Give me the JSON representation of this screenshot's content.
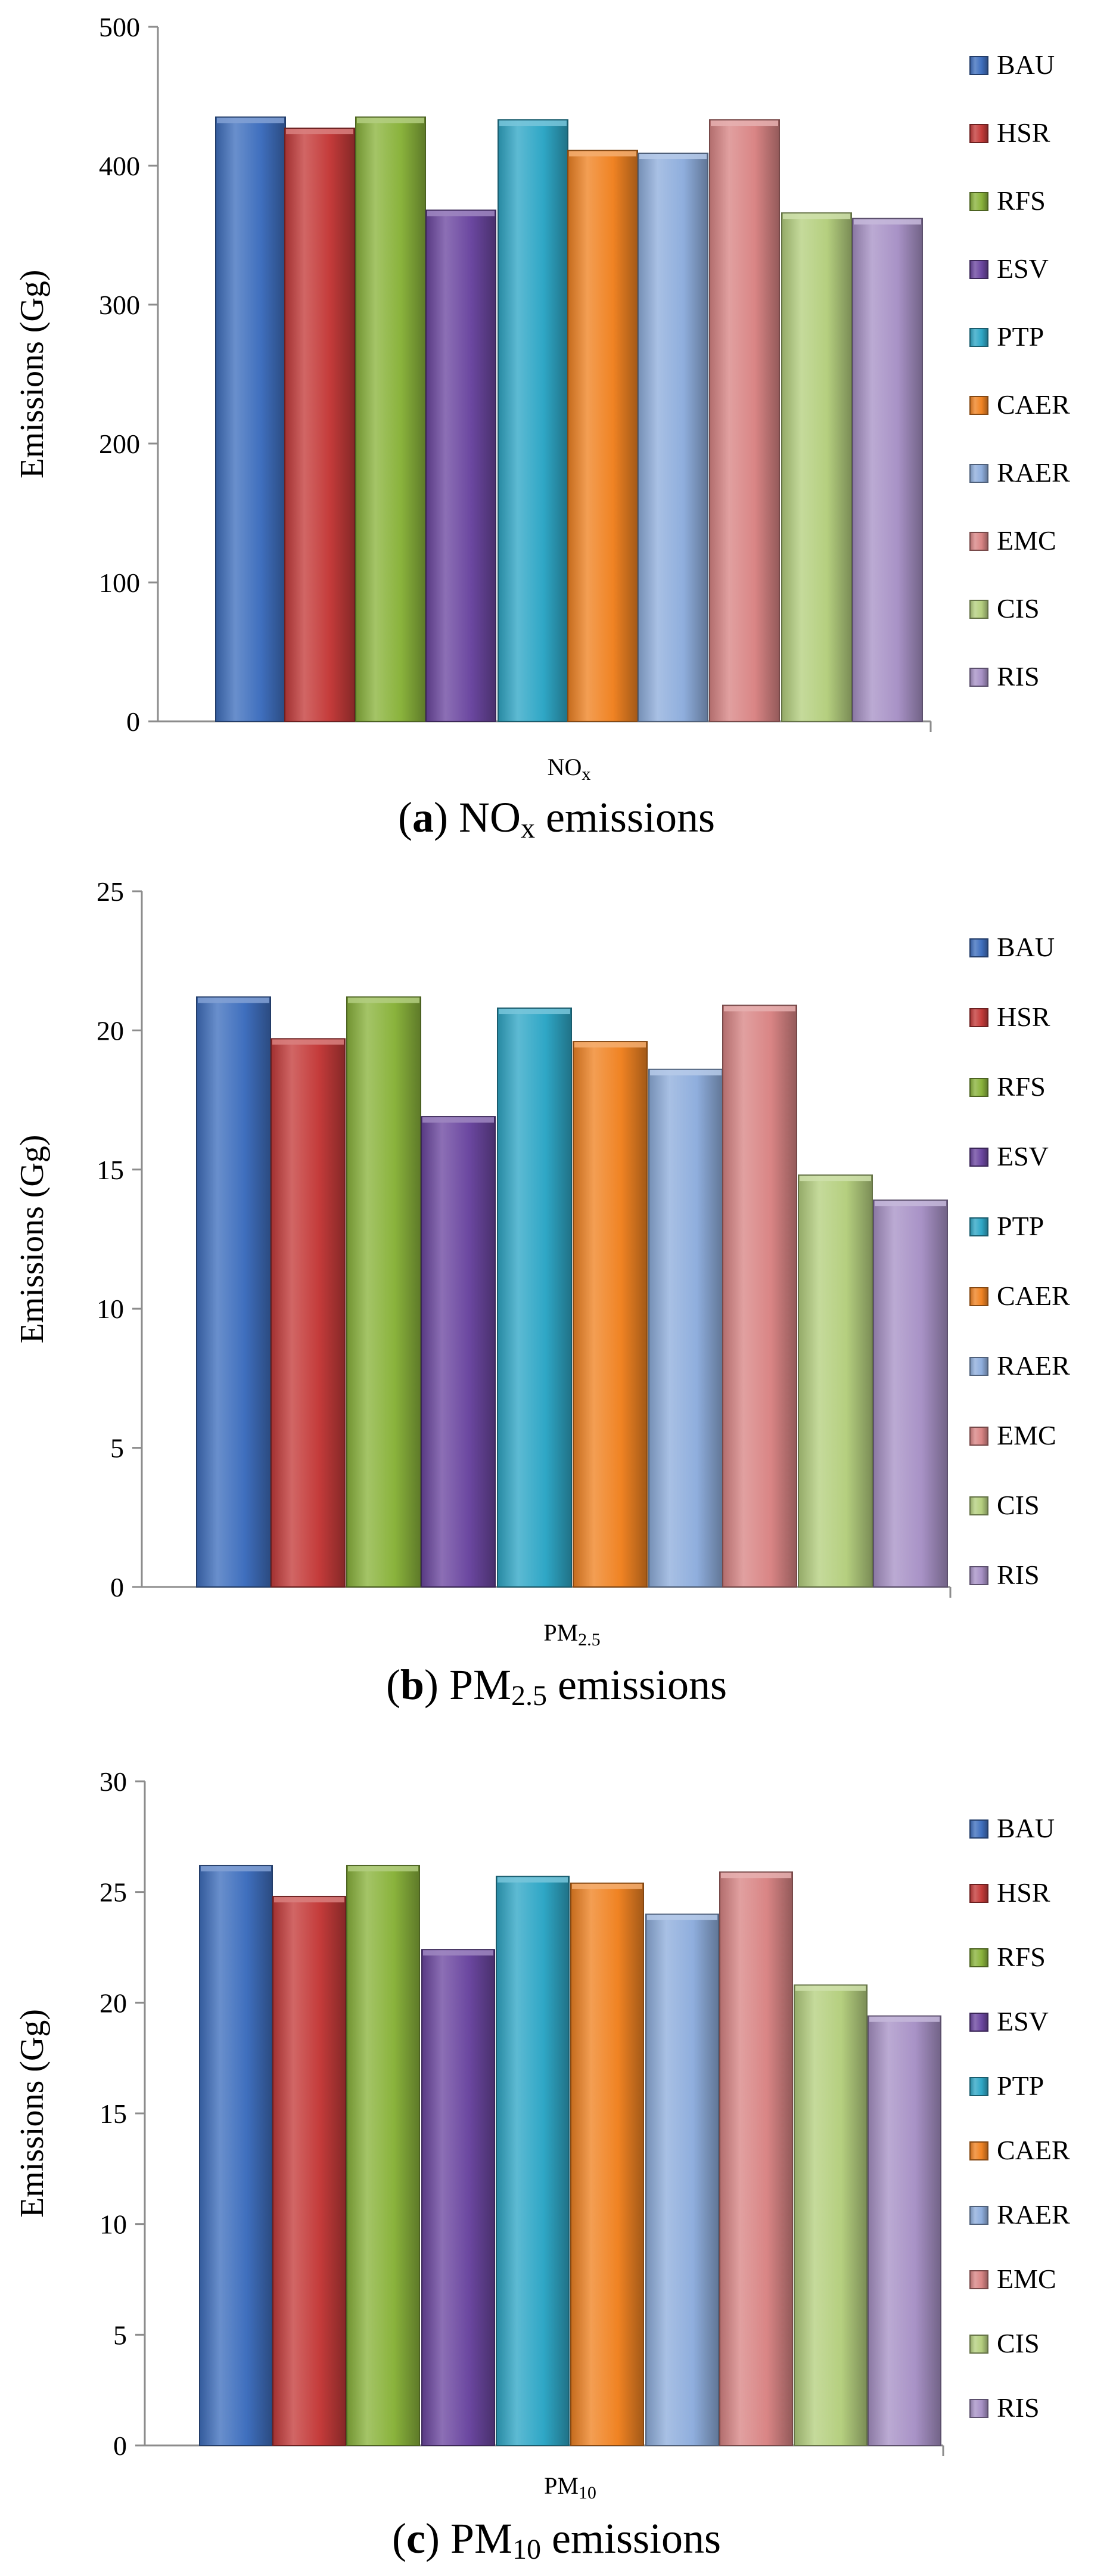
{
  "colors": {
    "BAU": "#3f6fbe",
    "HSR": "#c43b3a",
    "RFS": "#8ab33c",
    "ESV": "#6b47a0",
    "PTP": "#2fa7c6",
    "CAER": "#f08323",
    "RAER": "#8faedd",
    "EMC": "#d98585",
    "CIS": "#b5cf7f",
    "RIS": "#a892c6"
  },
  "chart_data": [
    {
      "type": "bar",
      "category": "NOx",
      "caption": {
        "letter": "a",
        "text": "NOx emissions"
      },
      "ylabel": "Emissions (Gg)",
      "ylim": [
        0,
        500
      ],
      "yticks": [
        0,
        100,
        200,
        300,
        400,
        500
      ],
      "series": [
        {
          "name": "BAU",
          "value": 435
        },
        {
          "name": "HSR",
          "value": 427
        },
        {
          "name": "RFS",
          "value": 435
        },
        {
          "name": "ESV",
          "value": 368
        },
        {
          "name": "PTP",
          "value": 433
        },
        {
          "name": "CAER",
          "value": 411
        },
        {
          "name": "RAER",
          "value": 409
        },
        {
          "name": "EMC",
          "value": 433
        },
        {
          "name": "CIS",
          "value": 366
        },
        {
          "name": "RIS",
          "value": 362
        }
      ]
    },
    {
      "type": "bar",
      "category": "PM2.5",
      "caption": {
        "letter": "b",
        "text": "PM2.5 emissions"
      },
      "ylabel": "Emissions (Gg)",
      "ylim": [
        0,
        25
      ],
      "yticks": [
        0,
        5,
        10,
        15,
        20,
        25
      ],
      "series": [
        {
          "name": "BAU",
          "value": 21.2
        },
        {
          "name": "HSR",
          "value": 19.7
        },
        {
          "name": "RFS",
          "value": 21.2
        },
        {
          "name": "ESV",
          "value": 16.9
        },
        {
          "name": "PTP",
          "value": 20.8
        },
        {
          "name": "CAER",
          "value": 19.6
        },
        {
          "name": "RAER",
          "value": 18.6
        },
        {
          "name": "EMC",
          "value": 20.9
        },
        {
          "name": "CIS",
          "value": 14.8
        },
        {
          "name": "RIS",
          "value": 13.9
        }
      ]
    },
    {
      "type": "bar",
      "category": "PM10",
      "caption": {
        "letter": "c",
        "text": "PM10 emissions"
      },
      "ylabel": "Emissions (Gg)",
      "ylim": [
        0,
        30
      ],
      "yticks": [
        0,
        5,
        10,
        15,
        20,
        25,
        30
      ],
      "series": [
        {
          "name": "BAU",
          "value": 26.2
        },
        {
          "name": "HSR",
          "value": 24.8
        },
        {
          "name": "RFS",
          "value": 26.2
        },
        {
          "name": "ESV",
          "value": 22.4
        },
        {
          "name": "PTP",
          "value": 25.7
        },
        {
          "name": "CAER",
          "value": 25.4
        },
        {
          "name": "RAER",
          "value": 24.0
        },
        {
          "name": "EMC",
          "value": 25.9
        },
        {
          "name": "CIS",
          "value": 20.8
        },
        {
          "name": "RIS",
          "value": 19.4
        }
      ]
    }
  ]
}
